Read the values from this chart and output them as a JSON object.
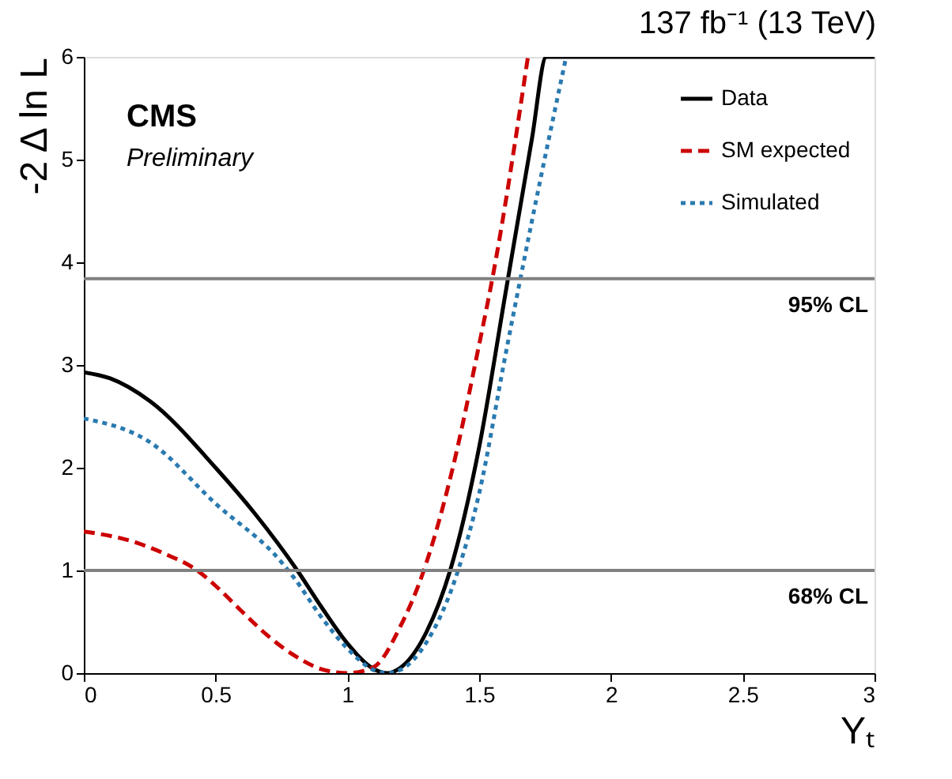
{
  "chart_data": {
    "type": "line",
    "title": "137 fb⁻¹ (13 TeV)",
    "xlabel": "Yₜ",
    "ylabel": "-2 Δ ln L",
    "xlim": [
      0,
      3
    ],
    "ylim": [
      0,
      6
    ],
    "xticks": [
      0,
      0.5,
      1,
      1.5,
      2,
      2.5,
      3
    ],
    "yticks": [
      0,
      1,
      2,
      3,
      4,
      5,
      6
    ],
    "grid": false,
    "legend": "top right",
    "marker": "none",
    "series": [
      {
        "name": "Data",
        "color": "#000000",
        "line_style": "solid",
        "x": [
          0,
          0.1,
          0.25,
          0.5,
          0.65,
          0.81,
          0.9,
          1.0,
          1.1,
          1.15,
          1.2,
          1.3,
          1.39,
          1.5,
          1.6,
          1.7,
          1.755,
          3
        ],
        "values": [
          2.93,
          2.87,
          2.65,
          2.0,
          1.55,
          1,
          0.65,
          0.29,
          0.04,
          0,
          0.05,
          0.4,
          1,
          2.2,
          3.7,
          5.2,
          6,
          6
        ]
      },
      {
        "name": "SM expected",
        "color": "#cc0000",
        "line_style": "dashed",
        "x": [
          0,
          0.2,
          0.3,
          0.43,
          0.5,
          0.6,
          0.7,
          0.8,
          0.9,
          1.0,
          1.1,
          1.2,
          1.29,
          1.4,
          1.5,
          1.55,
          1.685
        ],
        "values": [
          1.38,
          1.27,
          1.17,
          1.0,
          0.85,
          0.6,
          0.36,
          0.17,
          0.04,
          0,
          0.06,
          0.45,
          1,
          2.0,
          3.2,
          3.84,
          6
        ]
      },
      {
        "name": "Simulated",
        "color": "#2a7ab0",
        "line_style": "dotted",
        "x": [
          0,
          0.25,
          0.5,
          0.75,
          0.8,
          0.9,
          1.0,
          1.1,
          1.15,
          1.2,
          1.3,
          1.42,
          1.5,
          1.6,
          1.7,
          1.83
        ],
        "values": [
          2.48,
          2.25,
          1.65,
          1.08,
          0.92,
          0.55,
          0.24,
          0.03,
          0,
          0.03,
          0.3,
          1,
          1.75,
          3.1,
          4.4,
          6
        ]
      }
    ],
    "ref_lines": [
      {
        "axis": "y",
        "value": 3.84,
        "label": "95% CL",
        "color": "#808080"
      },
      {
        "axis": "y",
        "value": 1,
        "label": "68% CL",
        "color": "#808080"
      }
    ],
    "annotations": [
      "CMS",
      "Preliminary"
    ]
  }
}
